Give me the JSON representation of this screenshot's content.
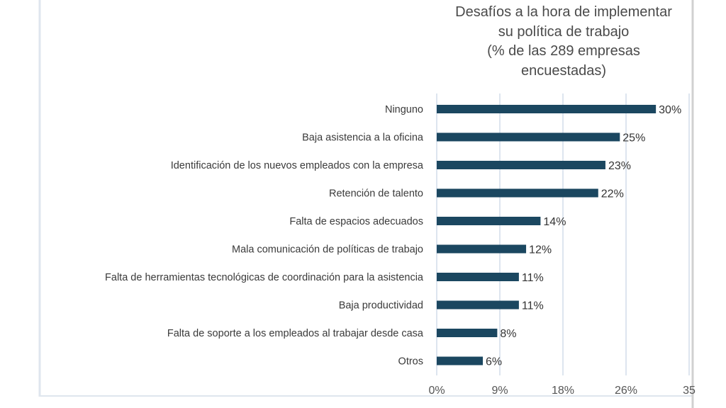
{
  "chart_data": {
    "type": "bar",
    "orientation": "horizontal",
    "title_lines": [
      "Desafíos a la hora de implementar",
      "su política de trabajo",
      "(% de las 289 empresas",
      "encuestadas)"
    ],
    "categories": [
      "Ninguno",
      "Baja asistencia a la oficina",
      "Identificación de los nuevos empleados con la empresa",
      "Retención de talento",
      "Falta de espacios adecuados",
      "Mala comunicación de políticas de trabajo",
      "Falta de herramientas tecnológicas de coordinación para la asistencia",
      "Baja productividad",
      "Falta de soporte a los empleados al trabajar desde casa",
      "Otros"
    ],
    "values": [
      30,
      25,
      23,
      22,
      14,
      12,
      11,
      11,
      8,
      6
    ],
    "data_labels": [
      "30%",
      "25%",
      "23%",
      "22%",
      "14%",
      "12%",
      "11%",
      "11%",
      "8%",
      "6%"
    ],
    "x_ticks": [
      0,
      8.75,
      17.5,
      26.25,
      35
    ],
    "x_tick_labels": [
      "0%",
      "9%",
      "18%",
      "26%",
      "35"
    ],
    "xlim": [
      0,
      35
    ],
    "grid": true,
    "bar_color": "#1b4760"
  }
}
